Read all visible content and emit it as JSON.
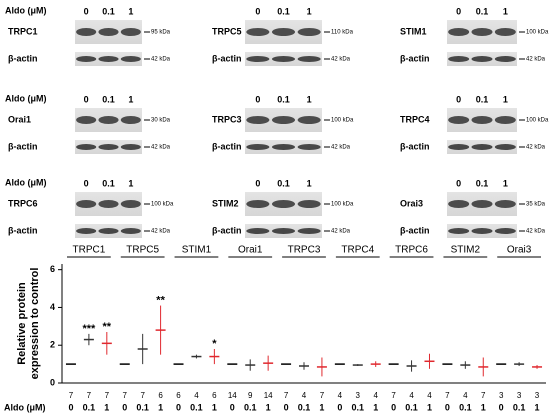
{
  "blots": [
    {
      "aldo_label": "Aldo (μM)",
      "doses": [
        "0",
        "0.1",
        "1"
      ],
      "protein": "TRPC1",
      "protein_kda": "95 kDa",
      "actin": "β-actin",
      "actin_kda": "42 kDa"
    },
    {
      "doses": [
        "0",
        "0.1",
        "1"
      ],
      "protein": "TRPC5",
      "protein_kda": "110 kDa",
      "actin": "β-actin",
      "actin_kda": "42 kDa"
    },
    {
      "doses": [
        "0",
        "0.1",
        "1"
      ],
      "protein": "STIM1",
      "protein_kda": "100 kDa",
      "actin": "β-actin",
      "actin_kda": "42 kDa"
    },
    {
      "aldo_label": "Aldo (μM)",
      "doses": [
        "0",
        "0.1",
        "1"
      ],
      "protein": "Orai1",
      "protein_kda": "30 kDa",
      "actin": "β-actin",
      "actin_kda": "42 kDa"
    },
    {
      "doses": [
        "0",
        "0.1",
        "1"
      ],
      "protein": "TRPC3",
      "protein_kda": "100 kDa",
      "actin": "β-actin",
      "actin_kda": "42 kDa"
    },
    {
      "doses": [
        "0",
        "0.1",
        "1"
      ],
      "protein": "TRPC4",
      "protein_kda": "100 kDa",
      "actin": "β-actin",
      "actin_kda": "42 kDa"
    },
    {
      "aldo_label": "Aldo (μM)",
      "doses": [
        "0",
        "0.1",
        "1"
      ],
      "protein": "TRPC6",
      "protein_kda": "100 kDa",
      "actin": "β-actin",
      "actin_kda": "42 kDa"
    },
    {
      "doses": [
        "0",
        "0.1",
        "1"
      ],
      "protein": "STIM2",
      "protein_kda": "100 kDa",
      "actin": "β-actin",
      "actin_kda": "42 kDa"
    },
    {
      "doses": [
        "0",
        "0.1",
        "1"
      ],
      "protein": "Orai3",
      "protein_kda": "35 kDa",
      "actin": "β-actin",
      "actin_kda": "42 kDa"
    }
  ],
  "chart_data": {
    "type": "dot",
    "groups": [
      "TRPC1",
      "TRPC5",
      "STIM1",
      "Orai1",
      "TRPC3",
      "TRPC4",
      "TRPC6",
      "STIM2",
      "Orai3"
    ],
    "ylabel": [
      "Relative protein",
      "expression to control"
    ],
    "xlabel": "Aldo (μM)",
    "ylim": [
      0,
      6.3
    ],
    "yticks": [
      0,
      2,
      4,
      6
    ],
    "series": [
      {
        "name": "0",
        "color": "#000000",
        "values": [
          1,
          1,
          1,
          1,
          1,
          1,
          1,
          1,
          1
        ],
        "errors": [
          0,
          0,
          0,
          0,
          0,
          0,
          0,
          0,
          0
        ],
        "n": [
          7,
          7,
          6,
          14,
          7,
          4,
          7,
          7,
          3
        ],
        "sig": [
          null,
          null,
          null,
          null,
          null,
          null,
          null,
          null,
          null
        ]
      },
      {
        "name": "0.1",
        "color": "#333333",
        "values": [
          2.3,
          1.8,
          1.4,
          0.95,
          0.9,
          0.95,
          0.9,
          0.95,
          1.0
        ],
        "errors": [
          0.3,
          0.8,
          0.1,
          0.3,
          0.2,
          0.05,
          0.3,
          0.2,
          0.1
        ],
        "n": [
          7,
          7,
          4,
          9,
          4,
          3,
          4,
          4,
          3
        ],
        "sig": [
          "***",
          null,
          null,
          null,
          null,
          null,
          null,
          null,
          null
        ]
      },
      {
        "name": "1",
        "color": "#e0282e",
        "values": [
          2.1,
          2.8,
          1.4,
          1.05,
          0.85,
          1.0,
          1.15,
          0.85,
          0.85
        ],
        "errors": [
          0.6,
          1.3,
          0.4,
          0.4,
          0.5,
          0.15,
          0.4,
          0.5,
          0.1
        ],
        "n": [
          7,
          6,
          6,
          14,
          7,
          4,
          4,
          7,
          3
        ],
        "sig": [
          "**",
          "**",
          "*",
          null,
          null,
          null,
          null,
          null,
          null
        ]
      }
    ]
  }
}
